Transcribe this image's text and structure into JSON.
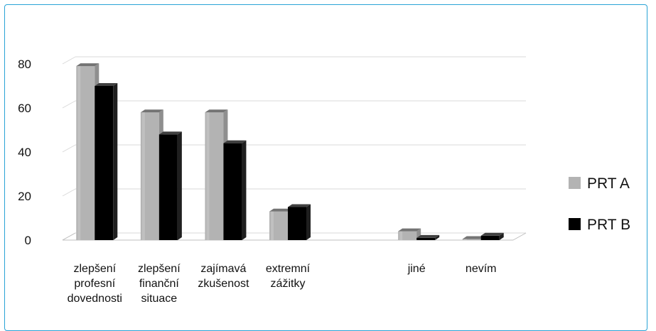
{
  "chart_data": {
    "type": "bar",
    "title": "",
    "xlabel": "",
    "ylabel": "",
    "ylim": [
      0,
      80
    ],
    "yticks": [
      0,
      20,
      40,
      60,
      80
    ],
    "grid": true,
    "legend_position": "right",
    "categories": [
      [
        "zlepšení",
        "profesní",
        "dovednosti"
      ],
      [
        "zlepšení",
        "finanční",
        "situace"
      ],
      [
        "zajímavá",
        "zkušenost"
      ],
      [
        "extremní",
        "zážitky"
      ],
      [
        ""
      ],
      [
        "jiné"
      ],
      [
        "nevím"
      ]
    ],
    "series": [
      {
        "name": "PRT A",
        "color": "#b3b3b3",
        "values": [
          79,
          58,
          58,
          13,
          null,
          4,
          0.5
        ]
      },
      {
        "name": "PRT B",
        "color": "#000000",
        "values": [
          70,
          48,
          44,
          15,
          null,
          1,
          2
        ]
      }
    ]
  },
  "colors": {
    "frame": "#29a3d6",
    "gridline": "#d9d9d9"
  }
}
